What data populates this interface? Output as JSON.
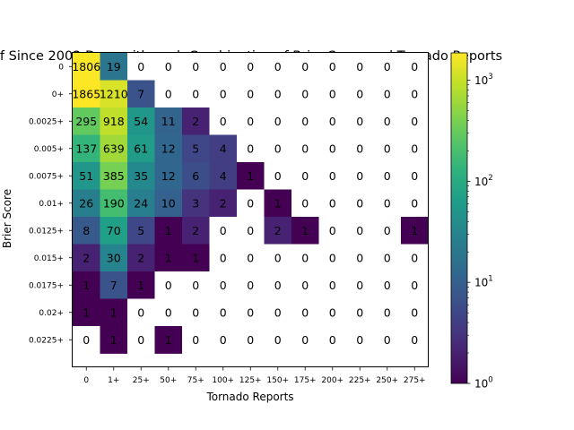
{
  "chart_data": {
    "type": "heatmap",
    "title": "f Since 2002 Days with each Combination of Brier Score and Tornado Reports",
    "xlabel": "Tornado Reports",
    "ylabel": "Brier Score",
    "x_categories": [
      "0",
      "1+",
      "25+",
      "50+",
      "75+",
      "100+",
      "125+",
      "150+",
      "175+",
      "200+",
      "225+",
      "250+",
      "275+"
    ],
    "y_categories": [
      "0",
      "0+",
      "0.0025+",
      "0.005+",
      "0.0075+",
      "0.01+",
      "0.0125+",
      "0.015+",
      "0.0175+",
      "0.02+",
      "0.0225+"
    ],
    "values": [
      [
        1806,
        19,
        0,
        0,
        0,
        0,
        0,
        0,
        0,
        0,
        0,
        0,
        0
      ],
      [
        1865,
        1210,
        7,
        0,
        0,
        0,
        0,
        0,
        0,
        0,
        0,
        0,
        0
      ],
      [
        295,
        918,
        54,
        11,
        2,
        0,
        0,
        0,
        0,
        0,
        0,
        0,
        0
      ],
      [
        137,
        639,
        61,
        12,
        5,
        4,
        0,
        0,
        0,
        0,
        0,
        0,
        0
      ],
      [
        51,
        385,
        35,
        12,
        6,
        4,
        1,
        0,
        0,
        0,
        0,
        0,
        0
      ],
      [
        26,
        190,
        24,
        10,
        3,
        2,
        0,
        1,
        0,
        0,
        0,
        0,
        0
      ],
      [
        8,
        70,
        5,
        1,
        2,
        0,
        0,
        2,
        1,
        0,
        0,
        0,
        1
      ],
      [
        2,
        30,
        2,
        1,
        1,
        0,
        0,
        0,
        0,
        0,
        0,
        0,
        0
      ],
      [
        1,
        7,
        1,
        0,
        0,
        0,
        0,
        0,
        0,
        0,
        0,
        0,
        0
      ],
      [
        1,
        1,
        0,
        0,
        0,
        0,
        0,
        0,
        0,
        0,
        0,
        0,
        0
      ],
      [
        0,
        1,
        0,
        1,
        0,
        0,
        0,
        0,
        0,
        0,
        0,
        0,
        0
      ]
    ],
    "colormap": "viridis",
    "color_scale": "log",
    "color_range": [
      1,
      1865
    ],
    "colorbar_ticks": [
      {
        "base": "10",
        "exp": "0"
      },
      {
        "base": "10",
        "exp": "1"
      },
      {
        "base": "10",
        "exp": "2"
      },
      {
        "base": "10",
        "exp": "3"
      }
    ],
    "colorbar_tick_values": [
      1,
      10,
      100,
      1000
    ],
    "zero_cells_color": "#ffffff",
    "grid": false
  }
}
